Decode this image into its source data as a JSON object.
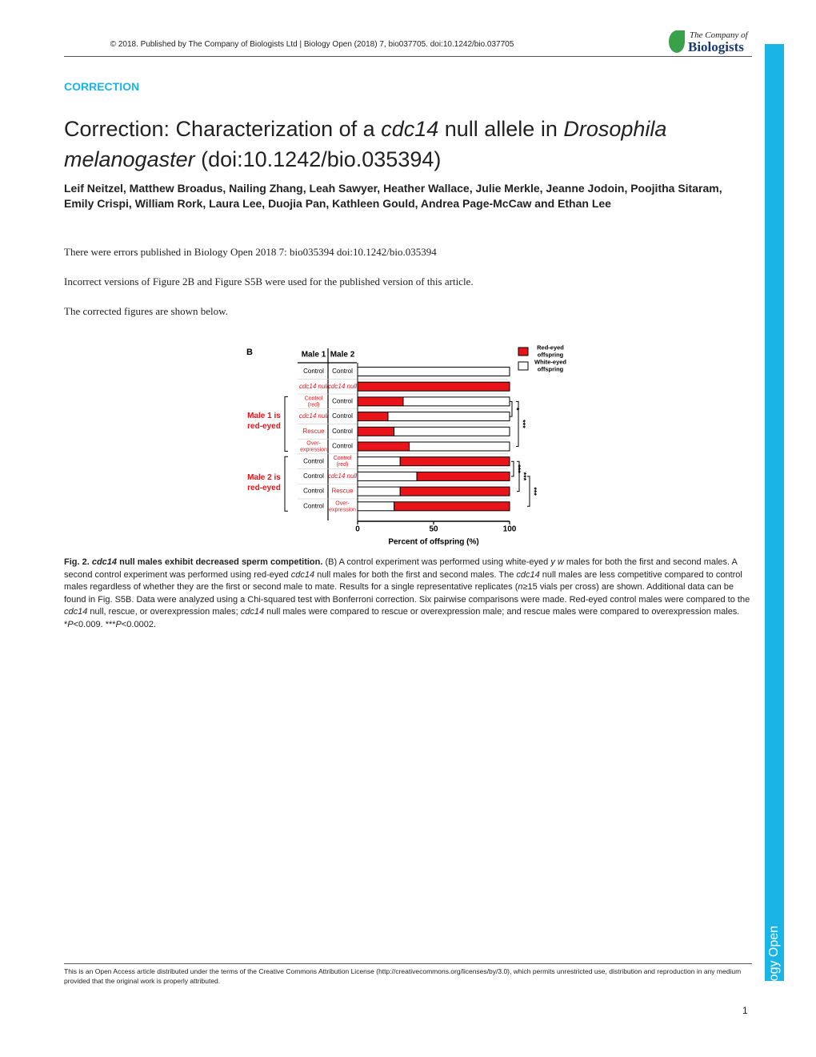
{
  "header": {
    "citation": "© 2018. Published by The Company of Biologists Ltd | Biology Open (2018) 7, bio037705. doi:10.1242/bio.037705",
    "logo_top": "The Company of",
    "logo_bottom": "Biologists"
  },
  "section": "CORRECTION",
  "title_parts": [
    "Correction: Characterization of a ",
    "cdc14",
    " null allele in ",
    "Drosophila melanogaster",
    " (doi:10.1242/bio.035394)"
  ],
  "authors": "Leif Neitzel, Matthew Broadus, Nailing Zhang, Leah Sawyer, Heather Wallace, Julie Merkle, Jeanne Jodoin, Poojitha Sitaram, Emily Crispi, William Rork, Laura Lee, Duojia Pan, Kathleen Gould, Andrea Page-McCaw and Ethan Lee",
  "paragraphs": [
    "There were errors published in Biology Open 2018 7: bio035394 doi:10.1242/bio.035394",
    "Incorrect versions of Figure 2B and Figure S5B were used for the published version of this article.",
    "The corrected figures are shown below."
  ],
  "chart_data": {
    "type": "stacked-barh",
    "panel": "B",
    "male1_header": "Male 1",
    "male2_header": "Male 2",
    "male1": [
      "Control",
      "cdc14 null",
      "Control (red)",
      "cdc14 null",
      "Rescue",
      "Over-expression",
      "Control",
      "Control",
      "Control",
      "Control"
    ],
    "male2": [
      "Control",
      "cdc14 null",
      "Control",
      "Control",
      "Control",
      "Control",
      "Control (red)",
      "cdc14 null",
      "Rescue",
      "Over-expression"
    ],
    "group_labels": [
      "Male 1 is red-eyed",
      "Male 2 is red-eyed"
    ],
    "series": [
      {
        "name": "Red-eyed offspring",
        "color": "#e8141a",
        "values": [
          0,
          100,
          30,
          20,
          24,
          34,
          72,
          61,
          72,
          76
        ]
      },
      {
        "name": "White-eyed offspring",
        "color": "#ffffff",
        "values": [
          100,
          0,
          70,
          80,
          76,
          66,
          28,
          39,
          28,
          24
        ]
      }
    ],
    "xlim": [
      0,
      100
    ],
    "xticks": [
      0,
      50,
      100
    ],
    "xlabel": "Percent of offspring (%)",
    "legend": "upper right",
    "annotations": [
      "*",
      "***",
      "***",
      "***",
      "***"
    ]
  },
  "caption": {
    "title_parts": [
      "Fig. 2. ",
      "cdc14",
      " null males exhibit decreased sperm competition."
    ],
    "body_parts": [
      " (B) A control experiment was performed using white-eyed ",
      "y w",
      " males for both the first and second males. A second control experiment was performed using red-eyed ",
      "cdc14",
      " null males for both the first and second males. The ",
      "cdc14",
      " null males are less competitive compared to control males regardless of whether they are the first or second male to mate. Results for a single representative replicates (",
      "n",
      "≥15 vials per cross) are shown. Additional data can be found in Fig. S5B. Data were analyzed using a Chi-squared test with Bonferroni correction. Six pairwise comparisons were made. Red-eyed control males were compared to the ",
      "cdc14",
      " null, rescue, or overexpression males; ",
      "cdc14",
      " null males were compared to rescue or overexpression male; and rescue males were compared to overexpression males. *",
      "P",
      "<0.009. ***",
      "P",
      "<0.0002."
    ]
  },
  "footer": "This is an Open Access article distributed under the terms of the Creative Commons Attribution License (http://creativecommons.org/licenses/by/3.0), which permits unrestricted use, distribution and reproduction in any medium provided that the original work is properly attributed.",
  "sidebar": "Biology Open",
  "page_number": "1"
}
